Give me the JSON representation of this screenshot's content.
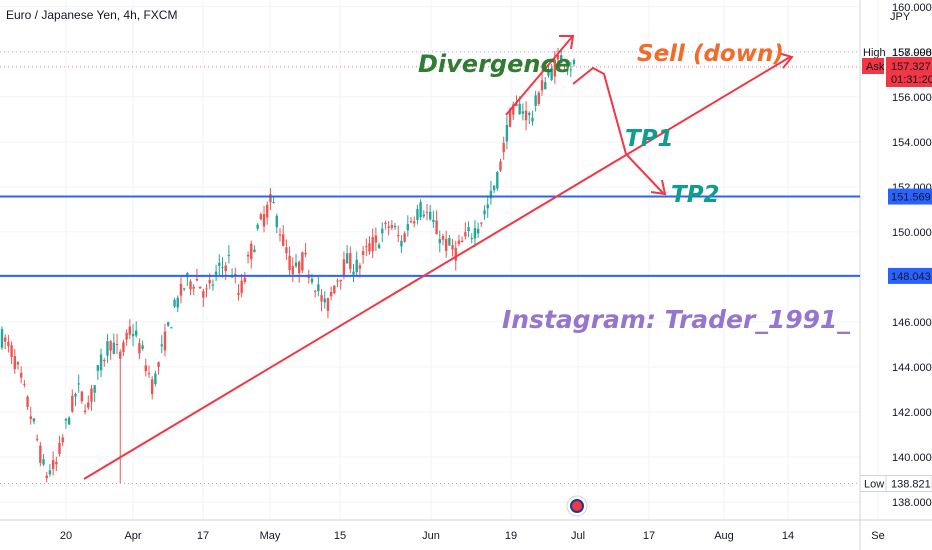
{
  "symbol": {
    "title": "Euro / Japanese Yen, 4h, FXCM",
    "currency": "JPY"
  },
  "colors": {
    "up": "#26a69a",
    "down": "#ef5350",
    "hline": "#2962ff",
    "trend": "#f23645",
    "divergence_text": "#2e7d32",
    "sell_text": "#ef6c2b",
    "tp_text": "#0f9d8f",
    "instagram_text": "#9575cd",
    "grid": "#f0f3fa"
  },
  "chart_data": {
    "type": "candlestick",
    "y_range": [
      137.2,
      160.3
    ],
    "y_ticks": [
      {
        "v": 138,
        "label": "138.000"
      },
      {
        "v": 140,
        "label": "140.000"
      },
      {
        "v": 142,
        "label": "142.000"
      },
      {
        "v": 144,
        "label": "144.000"
      },
      {
        "v": 146,
        "label": "146.000"
      },
      {
        "v": 148,
        "label": "148.000"
      },
      {
        "v": 150,
        "label": "150.000"
      },
      {
        "v": 152,
        "label": "152.000"
      },
      {
        "v": 154,
        "label": "154.000"
      },
      {
        "v": 156,
        "label": "156.000"
      },
      {
        "v": 158,
        "label": "158.000"
      },
      {
        "v": 160,
        "label": "160.000"
      }
    ],
    "x_ticks": [
      "20",
      "Apr",
      "17",
      "May",
      "15",
      "Jun",
      "19",
      "Jul",
      "17",
      "Aug",
      "14",
      "Se"
    ],
    "price_path": [
      145.3,
      144.6,
      143.0,
      141.3,
      139.2,
      139.6,
      141.5,
      143.0,
      142.2,
      143.9,
      145.2,
      144.4,
      145.8,
      144.6,
      143.1,
      145.0,
      146.6,
      147.7,
      147.9,
      147.2,
      148.2,
      148.8,
      147.1,
      149.0,
      150.4,
      151.4,
      149.7,
      148.1,
      148.8,
      147.8,
      146.5,
      147.9,
      148.7,
      148.4,
      149.3,
      149.7,
      150.4,
      149.5,
      150.7,
      151.1,
      150.3,
      149.5,
      149.1,
      149.7,
      150.2,
      151.1,
      152.5,
      155.0,
      155.6,
      155.0,
      156.4,
      157.2,
      157.8,
      157.3
    ],
    "candle_count": 180,
    "marker_labels": {
      "high": {
        "label": "High",
        "value": "157.998"
      },
      "ask": {
        "label": "Ask",
        "value": "157.327",
        "timer": "01:31:20"
      },
      "low": {
        "label": "Low",
        "value": "138.821"
      },
      "levels": [
        "151.569",
        "148.043"
      ]
    },
    "annotations": {
      "divergence": "Divergence",
      "sell": "Sell (down)",
      "tp1": "TP1",
      "tp2": "TP2",
      "instagram": "Instagram: Trader_1991_"
    }
  }
}
